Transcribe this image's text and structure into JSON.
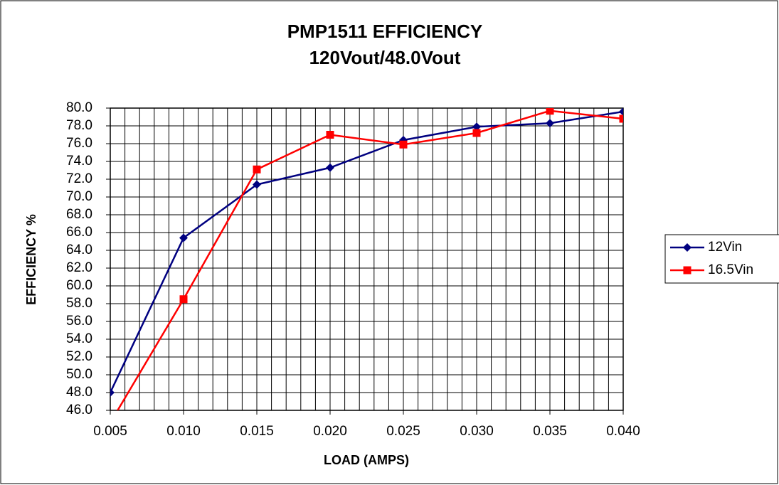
{
  "chart_data": {
    "type": "line",
    "title": "PMP1511 EFFICIENCY",
    "subtitle": "120Vout/48.0Vout",
    "x_label": "LOAD (AMPS)",
    "y_label": "EFFICIENCY %",
    "x": [
      0.005,
      0.01,
      0.015,
      0.02,
      0.025,
      0.03,
      0.035,
      0.04
    ],
    "series": [
      {
        "name": "12Vin",
        "color": "#000080",
        "marker": "diamond",
        "values": [
          48.0,
          65.4,
          71.4,
          73.3,
          76.4,
          77.9,
          78.3,
          79.6
        ]
      },
      {
        "name": "16.5Vin",
        "color": "#ff0000",
        "marker": "square",
        "values": [
          44.6,
          58.5,
          73.1,
          77.0,
          75.9,
          77.2,
          79.7,
          78.8
        ]
      }
    ],
    "xlim": [
      0.005,
      0.04
    ],
    "xticks": [
      0.005,
      {
        "value": 0.01,
        "label": "0.010"
      },
      0.015,
      {
        "value": 0.02,
        "label": "0.020"
      },
      0.025,
      {
        "value": 0.03,
        "label": "0.030"
      },
      0.035,
      {
        "value": 0.04,
        "label": "0.040"
      }
    ],
    "x_minor_divisions": 5,
    "ylim": [
      46,
      80
    ],
    "yticks": [
      {
        "value": 46,
        "label": "46.0"
      },
      {
        "value": 48,
        "label": "48.0"
      },
      {
        "value": 50,
        "label": "50.0"
      },
      {
        "value": 52,
        "label": "52.0"
      },
      {
        "value": 54,
        "label": "54.0"
      },
      {
        "value": 56,
        "label": "56.0"
      },
      {
        "value": 58,
        "label": "58.0"
      },
      {
        "value": 60,
        "label": "60.0"
      },
      {
        "value": 62,
        "label": "62.0"
      },
      {
        "value": 64,
        "label": "64.0"
      },
      {
        "value": 66,
        "label": "66.0"
      },
      {
        "value": 68,
        "label": "68.0"
      },
      {
        "value": 70,
        "label": "70.0"
      },
      {
        "value": 72,
        "label": "72.0"
      },
      {
        "value": 74,
        "label": "74.0"
      },
      {
        "value": 76,
        "label": "76.0"
      },
      {
        "value": 78,
        "label": "78.0"
      },
      {
        "value": 80,
        "label": "80.0"
      }
    ],
    "grid": true,
    "legend": "right"
  }
}
